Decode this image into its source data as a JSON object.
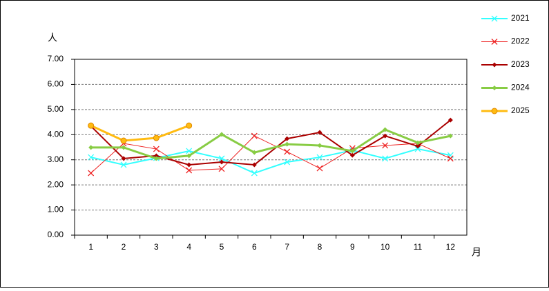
{
  "chart_data": {
    "type": "line",
    "ylabel": "人",
    "xlabel": "月",
    "categories": [
      "1",
      "2",
      "3",
      "4",
      "5",
      "6",
      "7",
      "8",
      "9",
      "10",
      "11",
      "12"
    ],
    "series": [
      {
        "name": "2021",
        "color": "#33ffff",
        "marker": "x",
        "line_width": 2,
        "values": [
          3.1,
          2.8,
          3.07,
          3.35,
          3.05,
          2.47,
          2.91,
          3.1,
          3.38,
          3.05,
          3.43,
          3.18
        ]
      },
      {
        "name": "2022",
        "color": "#ee2222",
        "marker": "x",
        "line_width": 1,
        "values": [
          2.47,
          3.65,
          3.43,
          2.58,
          2.64,
          3.95,
          3.32,
          2.66,
          3.46,
          3.57,
          3.65,
          3.05
        ]
      },
      {
        "name": "2023",
        "color": "#aa0000",
        "marker": "diamond",
        "line_width": 2,
        "values": [
          4.34,
          3.05,
          3.16,
          2.8,
          2.91,
          2.8,
          3.84,
          4.09,
          3.18,
          3.95,
          3.54,
          4.58
        ]
      },
      {
        "name": "2024",
        "color": "#88cc44",
        "marker": "diamond",
        "line_width": 3,
        "values": [
          3.49,
          3.49,
          3.05,
          3.16,
          4.01,
          3.29,
          3.62,
          3.57,
          3.35,
          4.2,
          3.68,
          3.95
        ]
      },
      {
        "name": "2025",
        "color": "#ffbb11",
        "marker": "circle",
        "line_width": 3,
        "values": [
          4.36,
          3.76,
          3.87,
          4.36,
          null,
          null,
          null,
          null,
          null,
          null,
          null,
          null
        ]
      }
    ],
    "ylim": [
      0,
      7
    ],
    "yticks": [
      {
        "value": 0,
        "label": "0.00"
      },
      {
        "value": 1,
        "label": "1.00"
      },
      {
        "value": 2,
        "label": "2.00"
      },
      {
        "value": 3,
        "label": "3.00"
      },
      {
        "value": 4,
        "label": "4.00"
      },
      {
        "value": 5,
        "label": "5.00"
      },
      {
        "value": 6,
        "label": "6.00"
      },
      {
        "value": 7,
        "label": "7.00"
      }
    ],
    "grid": true,
    "legend": "right"
  }
}
